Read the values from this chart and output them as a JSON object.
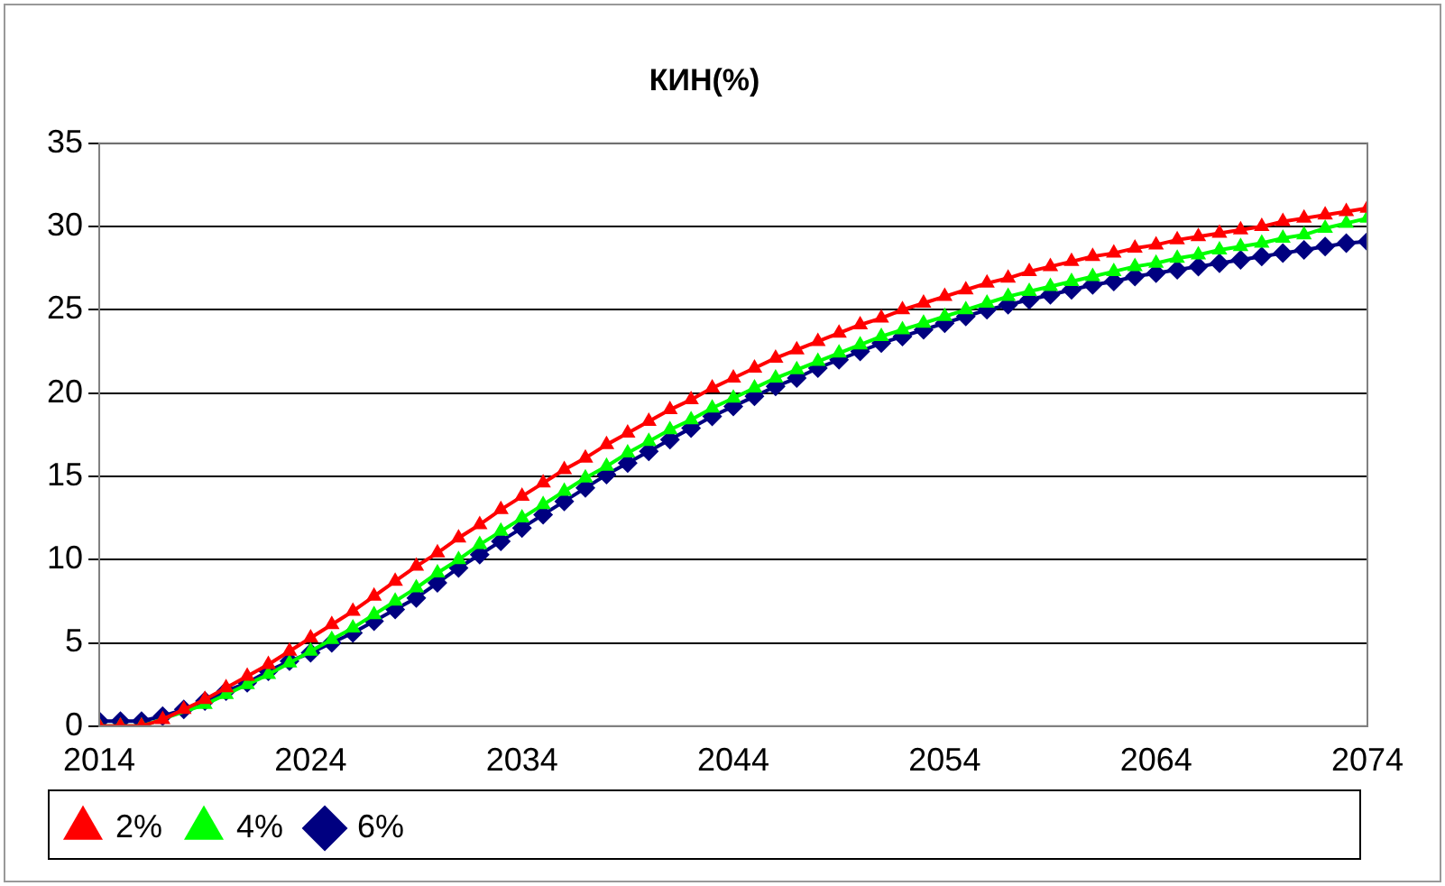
{
  "chart_data": {
    "type": "line",
    "title": "КИН(%)",
    "x": [
      2014,
      2015,
      2016,
      2017,
      2018,
      2019,
      2020,
      2021,
      2022,
      2023,
      2024,
      2025,
      2026,
      2027,
      2028,
      2029,
      2030,
      2031,
      2032,
      2033,
      2034,
      2035,
      2036,
      2037,
      2038,
      2039,
      2040,
      2041,
      2042,
      2043,
      2044,
      2045,
      2046,
      2047,
      2048,
      2049,
      2050,
      2051,
      2052,
      2053,
      2054,
      2055,
      2056,
      2057,
      2058,
      2059,
      2060,
      2061,
      2062,
      2063,
      2064,
      2065,
      2066,
      2067,
      2068,
      2069,
      2070,
      2071,
      2072,
      2073,
      2074
    ],
    "series": [
      {
        "name": "2%",
        "color": "#ff0000",
        "marker": "triangle",
        "values": [
          0,
          0,
          0,
          0.4,
          1.0,
          1.6,
          2.3,
          3.0,
          3.7,
          4.5,
          5.3,
          6.1,
          6.9,
          7.8,
          8.7,
          9.6,
          10.4,
          11.3,
          12.1,
          13.0,
          13.8,
          14.6,
          15.4,
          16.1,
          16.9,
          17.6,
          18.3,
          19.0,
          19.6,
          20.3,
          20.9,
          21.5,
          22.1,
          22.6,
          23.1,
          23.6,
          24.1,
          24.5,
          25.0,
          25.4,
          25.8,
          26.2,
          26.6,
          26.9,
          27.3,
          27.6,
          27.9,
          28.2,
          28.4,
          28.7,
          28.9,
          29.2,
          29.4,
          29.6,
          29.8,
          30.0,
          30.3,
          30.5,
          30.7,
          30.9,
          31.1
        ]
      },
      {
        "name": "4%",
        "color": "#00ff00",
        "marker": "triangle",
        "values": [
          0,
          0,
          0,
          null,
          null,
          1.3,
          1.9,
          2.5,
          3.1,
          3.8,
          4.5,
          5.2,
          5.9,
          6.7,
          7.5,
          8.3,
          9.2,
          10.0,
          10.9,
          11.7,
          12.5,
          13.3,
          14.1,
          14.9,
          15.6,
          16.4,
          17.1,
          17.8,
          18.4,
          19.1,
          19.7,
          20.3,
          20.9,
          21.4,
          21.9,
          22.4,
          22.9,
          23.4,
          23.8,
          24.2,
          24.6,
          25.0,
          25.4,
          25.8,
          26.1,
          26.4,
          26.7,
          27.0,
          27.3,
          27.6,
          27.8,
          28.1,
          28.3,
          28.6,
          28.8,
          29.0,
          29.3,
          29.5,
          29.9,
          30.2,
          30.5
        ]
      },
      {
        "name": "6%",
        "color": "#000080",
        "marker": "diamond",
        "values": [
          0.3,
          0.3,
          0.3,
          0.6,
          1.0,
          1.5,
          2.1,
          2.6,
          3.3,
          3.9,
          4.4,
          5.0,
          5.6,
          6.3,
          7.0,
          7.7,
          8.6,
          9.5,
          10.3,
          11.1,
          11.9,
          12.7,
          13.5,
          14.3,
          15.1,
          15.8,
          16.5,
          17.2,
          17.9,
          18.6,
          19.2,
          19.8,
          20.4,
          20.9,
          21.5,
          22.0,
          22.5,
          23.0,
          23.4,
          23.8,
          24.2,
          24.6,
          25.0,
          25.3,
          25.6,
          25.9,
          26.2,
          26.5,
          26.7,
          27.0,
          27.2,
          27.4,
          27.6,
          27.8,
          28.0,
          28.2,
          28.4,
          28.6,
          28.8,
          29.0,
          29.1
        ]
      }
    ],
    "xlim": [
      2014,
      2074
    ],
    "xticks": [
      2014,
      2024,
      2034,
      2044,
      2054,
      2064,
      2074
    ],
    "ylim": [
      0,
      35
    ],
    "yticks": [
      0,
      5,
      10,
      15,
      20,
      25,
      30,
      35
    ],
    "grid": "y",
    "legend": "bottom left",
    "line_style": "solid"
  }
}
